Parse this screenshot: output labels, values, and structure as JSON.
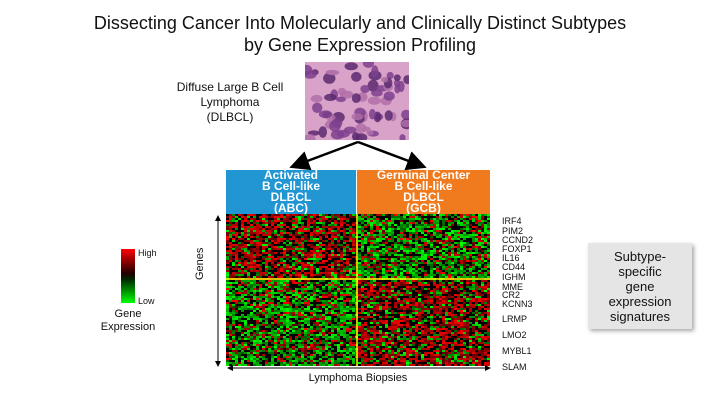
{
  "title": {
    "line1": "Dissecting Cancer Into Molecularly and Clinically Distinct Subtypes",
    "line2": "by Gene Expression Profiling"
  },
  "tissue_label": [
    "Diffuse Large B Cell",
    "Lymphoma",
    "(DLBCL)"
  ],
  "subtypes": {
    "abc": {
      "lines": [
        "Activated",
        "B Cell-like",
        "DLBCL",
        "(ABC)"
      ],
      "color": "#2196d3"
    },
    "gcb": {
      "lines": [
        "Germinal Center",
        "B Cell-like",
        "DLBCL",
        "(GCB)"
      ],
      "color": "#f07a1e"
    }
  },
  "genes": [
    "IRF4",
    "PIM2",
    "CCND2",
    "FOXP1",
    "IL16",
    "CD44",
    "IGHM",
    "MME",
    "CR2",
    "KCNN3",
    "LRMP",
    "LMO2",
    "MYBL1",
    "SLAM"
  ],
  "legend": {
    "high": "High",
    "low": "Low",
    "title_lines": [
      "Gene",
      "Expression"
    ]
  },
  "axis": {
    "y": "Genes",
    "x": "Lymphoma Biopsies"
  },
  "callout": [
    "Subtype-",
    "specific",
    "gene",
    "expression",
    "signatures"
  ],
  "colors": {
    "high": "#ff0000",
    "low": "#00ff00",
    "divider": "#ffff00",
    "callout_bg": "#e5e5e5"
  }
}
